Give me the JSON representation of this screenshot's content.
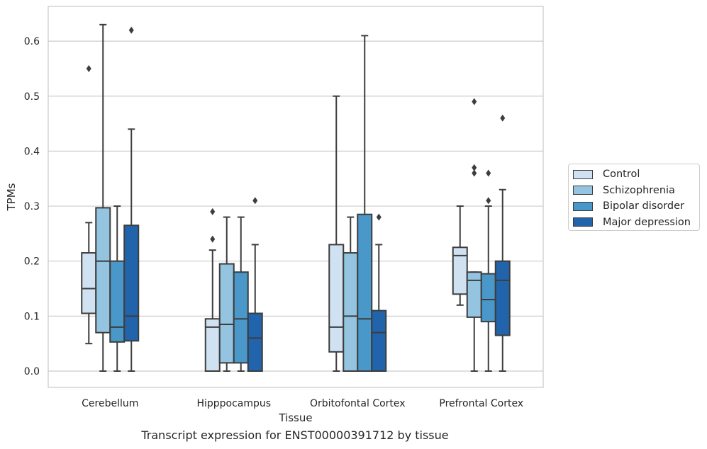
{
  "chart_data": {
    "type": "box",
    "title": "",
    "xlabel": "Tissue",
    "ylabel": "TPMs",
    "ylim": [
      -0.03,
      0.665
    ],
    "yticks": [
      0.0,
      0.1,
      0.2,
      0.3,
      0.4,
      0.5,
      0.6
    ],
    "ytick_labels": [
      "0.0",
      "0.1",
      "0.2",
      "0.3",
      "0.4",
      "0.5",
      "0.6"
    ],
    "grid": "horizontal",
    "legend_position": "right",
    "categories": [
      "Cerebellum",
      "Hipppocampus",
      "Orbitofontal Cortex",
      "Prefrontal Cortex"
    ],
    "series": [
      {
        "name": "Control",
        "color": "#d0e1f2",
        "boxes": [
          {
            "whislo": 0.05,
            "q1": 0.105,
            "med": 0.15,
            "q3": 0.215,
            "whishi": 0.27,
            "fliers": [
              0.55
            ]
          },
          {
            "whislo": 0.0,
            "q1": 0.0,
            "med": 0.08,
            "q3": 0.095,
            "whishi": 0.22,
            "fliers": [
              0.24,
              0.29
            ]
          },
          {
            "whislo": 0.0,
            "q1": 0.035,
            "med": 0.08,
            "q3": 0.23,
            "whishi": 0.5,
            "fliers": []
          },
          {
            "whislo": 0.12,
            "q1": 0.14,
            "med": 0.21,
            "q3": 0.225,
            "whishi": 0.3,
            "fliers": []
          }
        ]
      },
      {
        "name": "Schizophrenia",
        "color": "#94c4df",
        "boxes": [
          {
            "whislo": 0.0,
            "q1": 0.07,
            "med": 0.2,
            "q3": 0.297,
            "whishi": 0.63,
            "fliers": []
          },
          {
            "whislo": 0.0,
            "q1": 0.015,
            "med": 0.085,
            "q3": 0.195,
            "whishi": 0.28,
            "fliers": []
          },
          {
            "whislo": 0.0,
            "q1": 0.0,
            "med": 0.1,
            "q3": 0.215,
            "whishi": 0.28,
            "fliers": []
          },
          {
            "whislo": 0.0,
            "q1": 0.098,
            "med": 0.165,
            "q3": 0.18,
            "whishi": 0.18,
            "fliers": [
              0.36,
              0.37,
              0.49
            ]
          }
        ]
      },
      {
        "name": "Bipolar disorder",
        "color": "#4a98c9",
        "boxes": [
          {
            "whislo": 0.0,
            "q1": 0.053,
            "med": 0.08,
            "q3": 0.2,
            "whishi": 0.3,
            "fliers": []
          },
          {
            "whislo": 0.0,
            "q1": 0.015,
            "med": 0.095,
            "q3": 0.18,
            "whishi": 0.28,
            "fliers": []
          },
          {
            "whislo": 0.0,
            "q1": 0.0,
            "med": 0.095,
            "q3": 0.285,
            "whishi": 0.61,
            "fliers": []
          },
          {
            "whislo": 0.0,
            "q1": 0.09,
            "med": 0.13,
            "q3": 0.177,
            "whishi": 0.3,
            "fliers": [
              0.31,
              0.36
            ]
          }
        ]
      },
      {
        "name": "Major depression",
        "color": "#2164ab",
        "boxes": [
          {
            "whislo": 0.0,
            "q1": 0.055,
            "med": 0.1,
            "q3": 0.265,
            "whishi": 0.44,
            "fliers": [
              0.62
            ]
          },
          {
            "whislo": 0.0,
            "q1": 0.0,
            "med": 0.06,
            "q3": 0.105,
            "whishi": 0.23,
            "fliers": [
              0.31
            ]
          },
          {
            "whislo": 0.0,
            "q1": 0.0,
            "med": 0.07,
            "q3": 0.11,
            "whishi": 0.23,
            "fliers": [
              0.28
            ]
          },
          {
            "whislo": 0.0,
            "q1": 0.065,
            "med": 0.165,
            "q3": 0.2,
            "whishi": 0.33,
            "fliers": [
              0.46
            ]
          }
        ]
      }
    ]
  },
  "caption": "Transcript expression for ENST00000391712 by tissue"
}
